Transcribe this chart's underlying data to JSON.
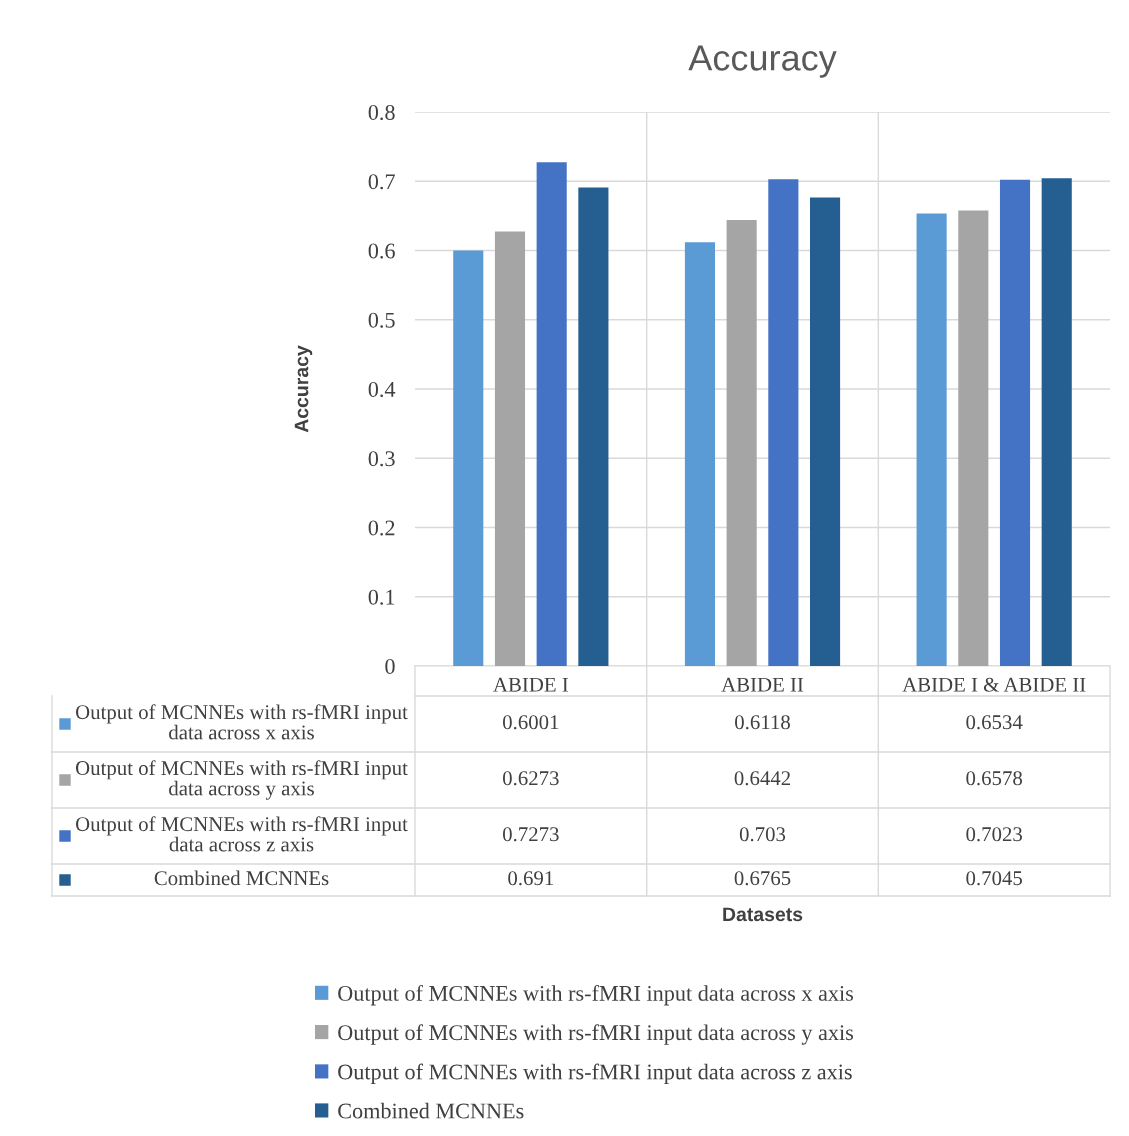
{
  "chart_data": {
    "type": "bar",
    "title": "Accuracy",
    "annotations": [
      "Datasets"
    ],
    "ylabel": "Accuracy",
    "categories": [
      "ABIDE I",
      "ABIDE II",
      "ABIDE I & ABIDE II"
    ],
    "series": [
      {
        "name": "Output of MCNNEs with rs-fMRI input data across x axis",
        "color": "#5b9bd5",
        "values": [
          0.6001,
          0.6118,
          0.6534
        ]
      },
      {
        "name": "Output of MCNNEs with rs-fMRI input data across y axis",
        "color": "#a5a5a5",
        "values": [
          0.6273,
          0.6442,
          0.6578
        ]
      },
      {
        "name": "Output of MCNNEs with rs-fMRI input data across z axis",
        "color": "#4472c4",
        "values": [
          0.7273,
          0.703,
          0.7023
        ]
      },
      {
        "name": "Combined MCNNEs",
        "color": "#255e91",
        "values": [
          0.691,
          0.6765,
          0.7045
        ]
      }
    ],
    "ylim": [
      0,
      0.8
    ],
    "yticks": [
      0,
      0.1,
      0.2,
      0.3,
      0.4,
      0.5,
      0.6,
      0.7,
      0.8
    ],
    "grid": "y",
    "legend": "bottom",
    "data_labels": true
  }
}
